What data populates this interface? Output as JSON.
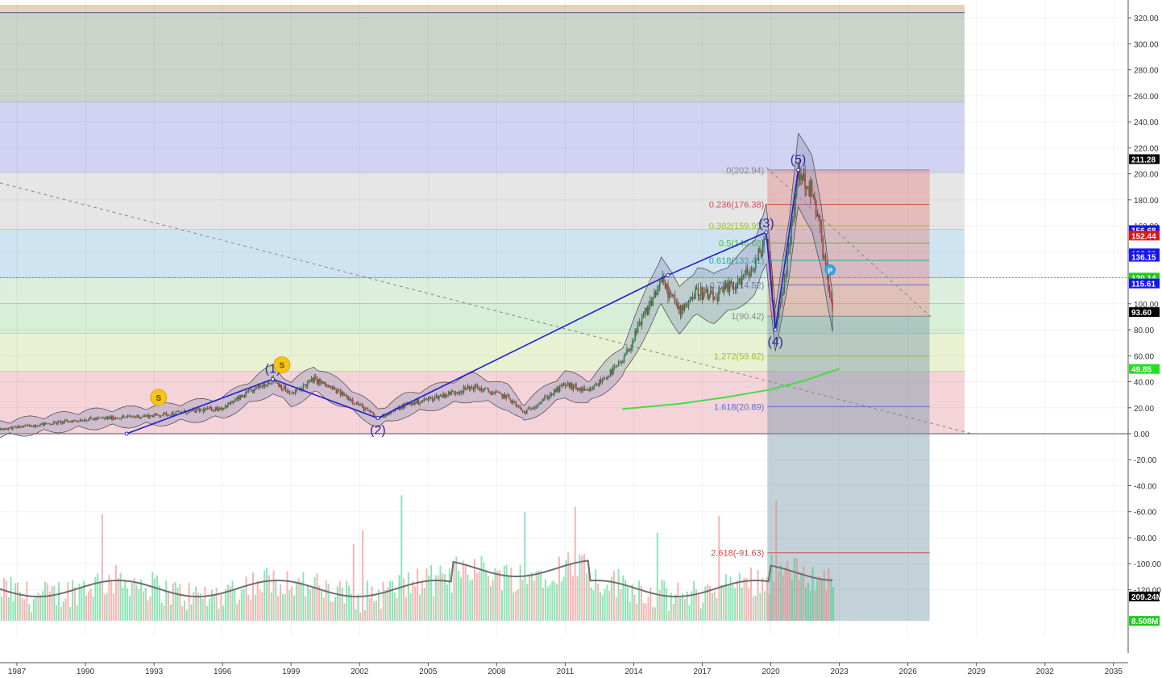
{
  "chart_data": {
    "type": "candlestick",
    "x_range": [
      1985.5,
      2036.0
    ],
    "y_range": [
      -144.5,
      329.5
    ],
    "x_ticks": [
      "1987",
      "1990",
      "1993",
      "1996",
      "1999",
      "2002",
      "2005",
      "2008",
      "2011",
      "2014",
      "2017",
      "2020",
      "2023",
      "2026",
      "2029",
      "2032",
      "2035"
    ],
    "y_ticks": [
      "320.00",
      "300.00",
      "280.00",
      "260.00",
      "240.00",
      "220.00",
      "200.00",
      "180.00",
      "160.00",
      "140.00",
      "120.00",
      "100.00",
      "80.00",
      "60.00",
      "40.00",
      "20.00",
      "0.00",
      "-20.00",
      "-40.00",
      "-60.00",
      "-80.00",
      "-100.00",
      "-120.00"
    ],
    "price_path": [
      [
        1985.5,
        2
      ],
      [
        1987,
        5
      ],
      [
        1990,
        11
      ],
      [
        1993,
        14
      ],
      [
        1996,
        20
      ],
      [
        1998.2,
        42
      ],
      [
        1999,
        30
      ],
      [
        2000,
        42
      ],
      [
        2001.5,
        28
      ],
      [
        2002.8,
        12
      ],
      [
        2004,
        22
      ],
      [
        2007,
        36
      ],
      [
        2008.5,
        28
      ],
      [
        2009.2,
        16
      ],
      [
        2011,
        38
      ],
      [
        2012,
        32
      ],
      [
        2013.5,
        55
      ],
      [
        2015.2,
        118
      ],
      [
        2016,
        95
      ],
      [
        2016.8,
        110
      ],
      [
        2017.5,
        104
      ],
      [
        2018.5,
        116
      ],
      [
        2019.3,
        128
      ],
      [
        2019.8,
        154
      ],
      [
        2020.2,
        80
      ],
      [
        2020.8,
        142
      ],
      [
        2021.2,
        203
      ],
      [
        2021.8,
        185
      ],
      [
        2022.2,
        152
      ],
      [
        2022.5,
        115
      ],
      [
        2022.7,
        93.6
      ]
    ],
    "wave_labels": [
      {
        "label": "(1)",
        "x": 1998.2,
        "y": 42
      },
      {
        "label": "(2)",
        "x": 2002.8,
        "y": 12
      },
      {
        "label": "(3)",
        "x": 2019.8,
        "y": 154
      },
      {
        "label": "(4)",
        "x": 2020.2,
        "y": 80
      },
      {
        "label": "(5)",
        "x": 2021.2,
        "y": 203
      }
    ],
    "wave_line": [
      [
        1991.8,
        0
      ],
      [
        1998.2,
        42
      ],
      [
        2002.8,
        12
      ],
      [
        2015.5,
        122
      ],
      [
        2019.8,
        155
      ],
      [
        2020.2,
        80
      ],
      [
        2021.2,
        203
      ]
    ],
    "fib_levels": [
      {
        "label": "0(202.94)",
        "value": 202.94,
        "color": "#888888"
      },
      {
        "label": "0.236(176.38)",
        "value": 176.38,
        "color": "#d44a4a"
      },
      {
        "label": "0.382(159.95)",
        "value": 159.95,
        "color": "#9bbf2e"
      },
      {
        "label": "0.5(146.68)",
        "value": 146.68,
        "color": "#3fbf3f"
      },
      {
        "label": "0.618(133.41)",
        "value": 133.41,
        "color": "#2aa98f"
      },
      {
        "label": "0.786(114.52)",
        "value": 114.52,
        "color": "#5b6fd6"
      },
      {
        "label": "1(90.42)",
        "value": 90.42,
        "color": "#888888"
      },
      {
        "label": "1.272(59.82)",
        "value": 59.82,
        "color": "#9bbf2e"
      },
      {
        "label": "1.618(20.89)",
        "value": 20.89,
        "color": "#5b6fd6"
      },
      {
        "label": "2.618(-91.63)",
        "value": -91.63,
        "color": "#d44a4a"
      }
    ],
    "background_bands": [
      {
        "from": 324,
        "to": 330,
        "color": "#e6d3b4"
      },
      {
        "from": 255,
        "to": 324,
        "color": "#cbd5cb"
      },
      {
        "from": 201,
        "to": 255,
        "color": "#d2d2f2"
      },
      {
        "from": 157,
        "to": 201,
        "color": "#e6e6e6"
      },
      {
        "from": 120,
        "to": 157,
        "color": "#cfe4f1"
      },
      {
        "from": 100,
        "to": 120,
        "color": "#dcefdc"
      },
      {
        "from": 77,
        "to": 100,
        "color": "#d6efd6"
      },
      {
        "from": 48,
        "to": 77,
        "color": "#e9f1d3"
      },
      {
        "from": 0,
        "to": 48,
        "color": "#f4d4d8"
      }
    ],
    "price_labels": [
      {
        "value": "211.28",
        "num": 211.28,
        "bg": "#000000",
        "fg": "#ffffff"
      },
      {
        "value": "156.68",
        "num": 156.68,
        "bg": "#1515f0",
        "fg": "#ffffff"
      },
      {
        "value": "152.44",
        "num": 152.44,
        "bg": "#e01515",
        "fg": "#ffffff"
      },
      {
        "value": "138.80",
        "num": 138.8,
        "bg": "#1515f0",
        "fg": "#ffffff"
      },
      {
        "value": "136.15",
        "num": 136.15,
        "bg": "#1515f0",
        "fg": "#ffffff"
      },
      {
        "value": "120.14",
        "num": 120.14,
        "bg": "#21c921",
        "fg": "#ffffff"
      },
      {
        "value": "115.61",
        "num": 115.61,
        "bg": "#1515f0",
        "fg": "#ffffff"
      },
      {
        "value": "93.60",
        "num": 93.6,
        "bg": "#000000",
        "fg": "#ffffff"
      },
      {
        "value": "49.85",
        "num": 49.85,
        "bg": "#21e021",
        "fg": "#000000"
      },
      {
        "value": "209.24M",
        "num": -125.2,
        "bg": "#000000",
        "fg": "#ffffff"
      },
      {
        "value": "8.508M",
        "num": -144.0,
        "bg": "#21c921",
        "fg": "#ffffff"
      }
    ],
    "dividend_markers": [
      {
        "label": "S",
        "x": 1985.7,
        "y": 16
      },
      {
        "label": "S",
        "x": 1993.2,
        "y": 28
      },
      {
        "label": "S",
        "x": 1998.6,
        "y": 53
      }
    ],
    "pivot_marker": {
      "label": "P",
      "x": 2022.6,
      "y": 126
    },
    "moving_average_green": [
      [
        2013.5,
        19
      ],
      [
        2016,
        23
      ],
      [
        2018,
        28
      ],
      [
        2020,
        34
      ],
      [
        2021.5,
        41
      ],
      [
        2022.5,
        47
      ],
      [
        2023,
        49.85
      ]
    ],
    "volume_series_note": ""
  }
}
